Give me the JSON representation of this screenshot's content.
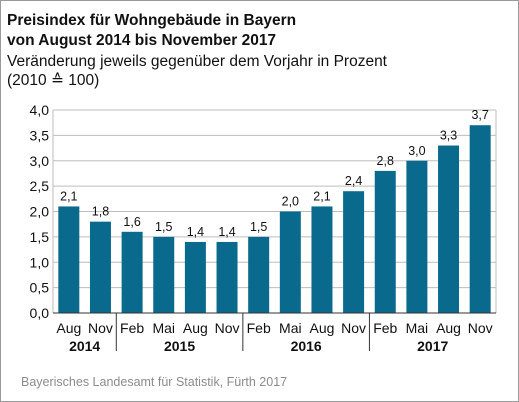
{
  "title_line1": "Preisindex für Wohngebäude in Bayern",
  "title_line2": "von August 2014 bis November 2017",
  "subtitle_line1": "Veränderung jeweils gegenüber dem Vorjahr in Prozent",
  "subtitle_line2": "(2010 ≙ 100)",
  "source": "Bayerisches Landesamt für Statistik, Fürth 2017",
  "bar_color": "#0a6a8e",
  "chart_data": {
    "type": "bar",
    "categories": [
      "Aug",
      "Nov",
      "Feb",
      "Mai",
      "Aug",
      "Nov",
      "Feb",
      "Mai",
      "Aug",
      "Nov",
      "Feb",
      "Mai",
      "Aug",
      "Nov"
    ],
    "values": [
      2.1,
      1.8,
      1.6,
      1.5,
      1.4,
      1.4,
      1.5,
      2.0,
      2.1,
      2.4,
      2.8,
      3.0,
      3.3,
      3.7
    ],
    "value_labels": [
      "2,1",
      "1,8",
      "1,6",
      "1,5",
      "1,4",
      "1,4",
      "1,5",
      "2,0",
      "2,1",
      "2,4",
      "2,8",
      "3,0",
      "3,3",
      "3,7"
    ],
    "year_groups": [
      {
        "label": "2014",
        "count": 2
      },
      {
        "label": "2015",
        "count": 4
      },
      {
        "label": "2016",
        "count": 4
      },
      {
        "label": "2017",
        "count": 4
      }
    ],
    "yticks": [
      "0,0",
      "0,5",
      "1,0",
      "1,5",
      "2,0",
      "2,5",
      "3,0",
      "3,5",
      "4,0"
    ],
    "ylim": [
      0,
      4
    ],
    "grid": true
  }
}
